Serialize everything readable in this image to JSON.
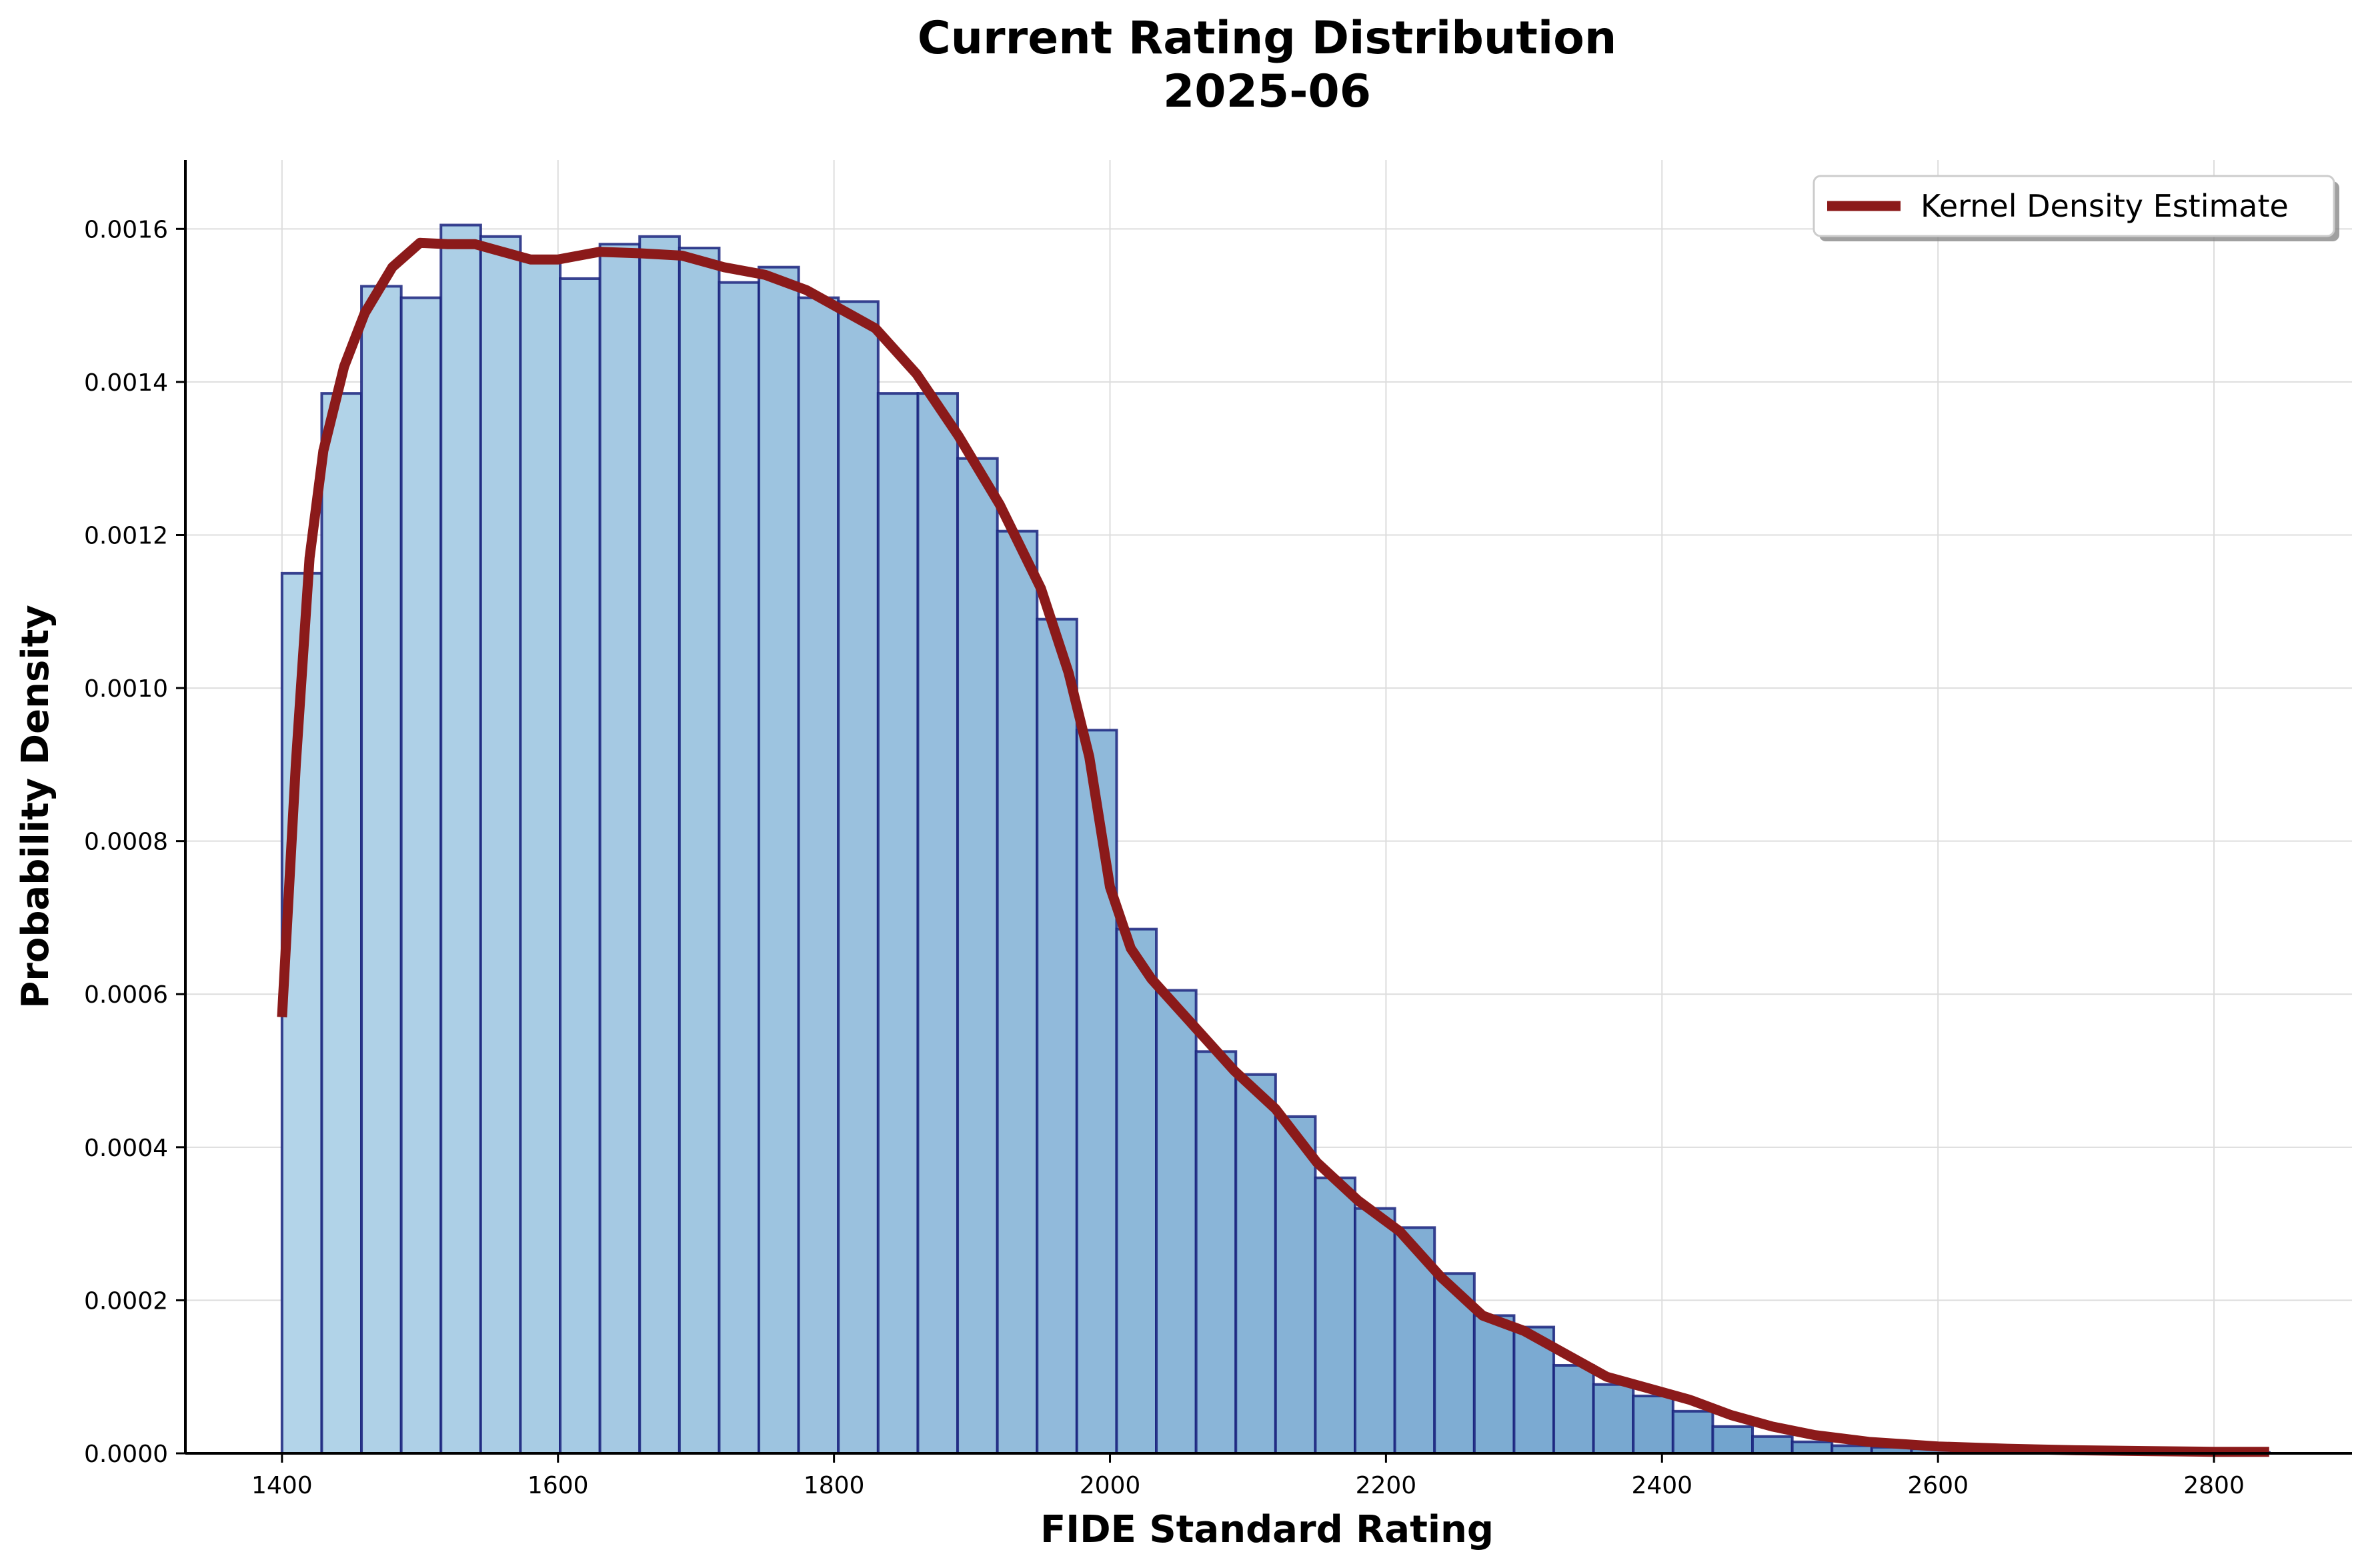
{
  "chart_data": {
    "type": "bar",
    "title": "Current Rating Distribution",
    "subtitle": "2025-06",
    "xlabel": "FIDE Standard Rating",
    "ylabel": "Probability Density",
    "xlim": [
      1330,
      2900
    ],
    "ylim": [
      0,
      0.00169
    ],
    "x_ticks": [
      1400,
      1600,
      1800,
      2000,
      2200,
      2400,
      2600,
      2800
    ],
    "y_ticks": [
      0.0,
      0.0002,
      0.0004,
      0.0006,
      0.0008,
      0.001,
      0.0012,
      0.0014,
      0.0016
    ],
    "x_tick_labels": [
      "1400",
      "1600",
      "1800",
      "2000",
      "2200",
      "2400",
      "2600",
      "2800"
    ],
    "y_tick_labels": [
      "0.0000",
      "0.0002",
      "0.0004",
      "0.0006",
      "0.0008",
      "0.0010",
      "0.0012",
      "0.0014",
      "0.0016"
    ],
    "grid": true,
    "legend_position": "top-right",
    "histogram": {
      "bin_start": 1400,
      "bin_width": 28.8,
      "values": [
        0.00115,
        0.001385,
        0.001525,
        0.00151,
        0.001605,
        0.00159,
        0.00156,
        0.001535,
        0.00158,
        0.00159,
        0.001575,
        0.00153,
        0.00155,
        0.00151,
        0.001505,
        0.001385,
        0.001385,
        0.0013,
        0.001205,
        0.00109,
        0.000945,
        0.000685,
        0.000605,
        0.000525,
        0.000495,
        0.00044,
        0.00036,
        0.00032,
        0.000295,
        0.000235,
        0.00018,
        0.000165,
        0.000115,
        9e-05,
        7.5e-05,
        5.5e-05,
        3.5e-05,
        2.2e-05,
        1.5e-05,
        1e-05,
        8e-06,
        6e-06,
        5e-06,
        4e-06,
        3e-06,
        2e-06,
        2e-06,
        2e-06,
        1e-06,
        1e-06
      ]
    },
    "kde": {
      "name": "Kernel Density Estimate",
      "x": [
        1400,
        1410,
        1420,
        1430,
        1445,
        1460,
        1480,
        1500,
        1520,
        1540,
        1560,
        1580,
        1600,
        1630,
        1660,
        1690,
        1720,
        1750,
        1780,
        1800,
        1830,
        1860,
        1890,
        1920,
        1950,
        1970,
        1985,
        2000,
        2015,
        2030,
        2060,
        2090,
        2120,
        2150,
        2180,
        2210,
        2240,
        2270,
        2300,
        2330,
        2360,
        2390,
        2420,
        2450,
        2480,
        2510,
        2550,
        2600,
        2650,
        2700,
        2750,
        2800,
        2840
      ],
      "y": [
        0.00057,
        0.0009,
        0.00117,
        0.00131,
        0.00142,
        0.00149,
        0.00155,
        0.0015817,
        0.00158,
        0.00158,
        0.00157,
        0.00156,
        0.00156,
        0.00157,
        0.001568,
        0.001565,
        0.00155,
        0.00154,
        0.00152,
        0.0015,
        0.00147,
        0.00141,
        0.00133,
        0.00124,
        0.00113,
        0.00102,
        0.00091,
        0.00074,
        0.00066,
        0.00062,
        0.00056,
        0.0005,
        0.00045,
        0.00038,
        0.00033,
        0.00029,
        0.00023,
        0.00018,
        0.00016,
        0.00013,
        0.0001,
        8.5e-05,
        7e-05,
        5e-05,
        3.5e-05,
        2.4e-05,
        1.5e-05,
        9e-06,
        6e-06,
        4e-06,
        3e-06,
        2e-06,
        2e-06
      ]
    },
    "colors": {
      "bar_light": "#b3d4e9",
      "bar_dark": "#5b92c4",
      "bar_edge": "#1a237e",
      "kde_line": "#8b1a1a",
      "grid": "#dddddd"
    }
  }
}
